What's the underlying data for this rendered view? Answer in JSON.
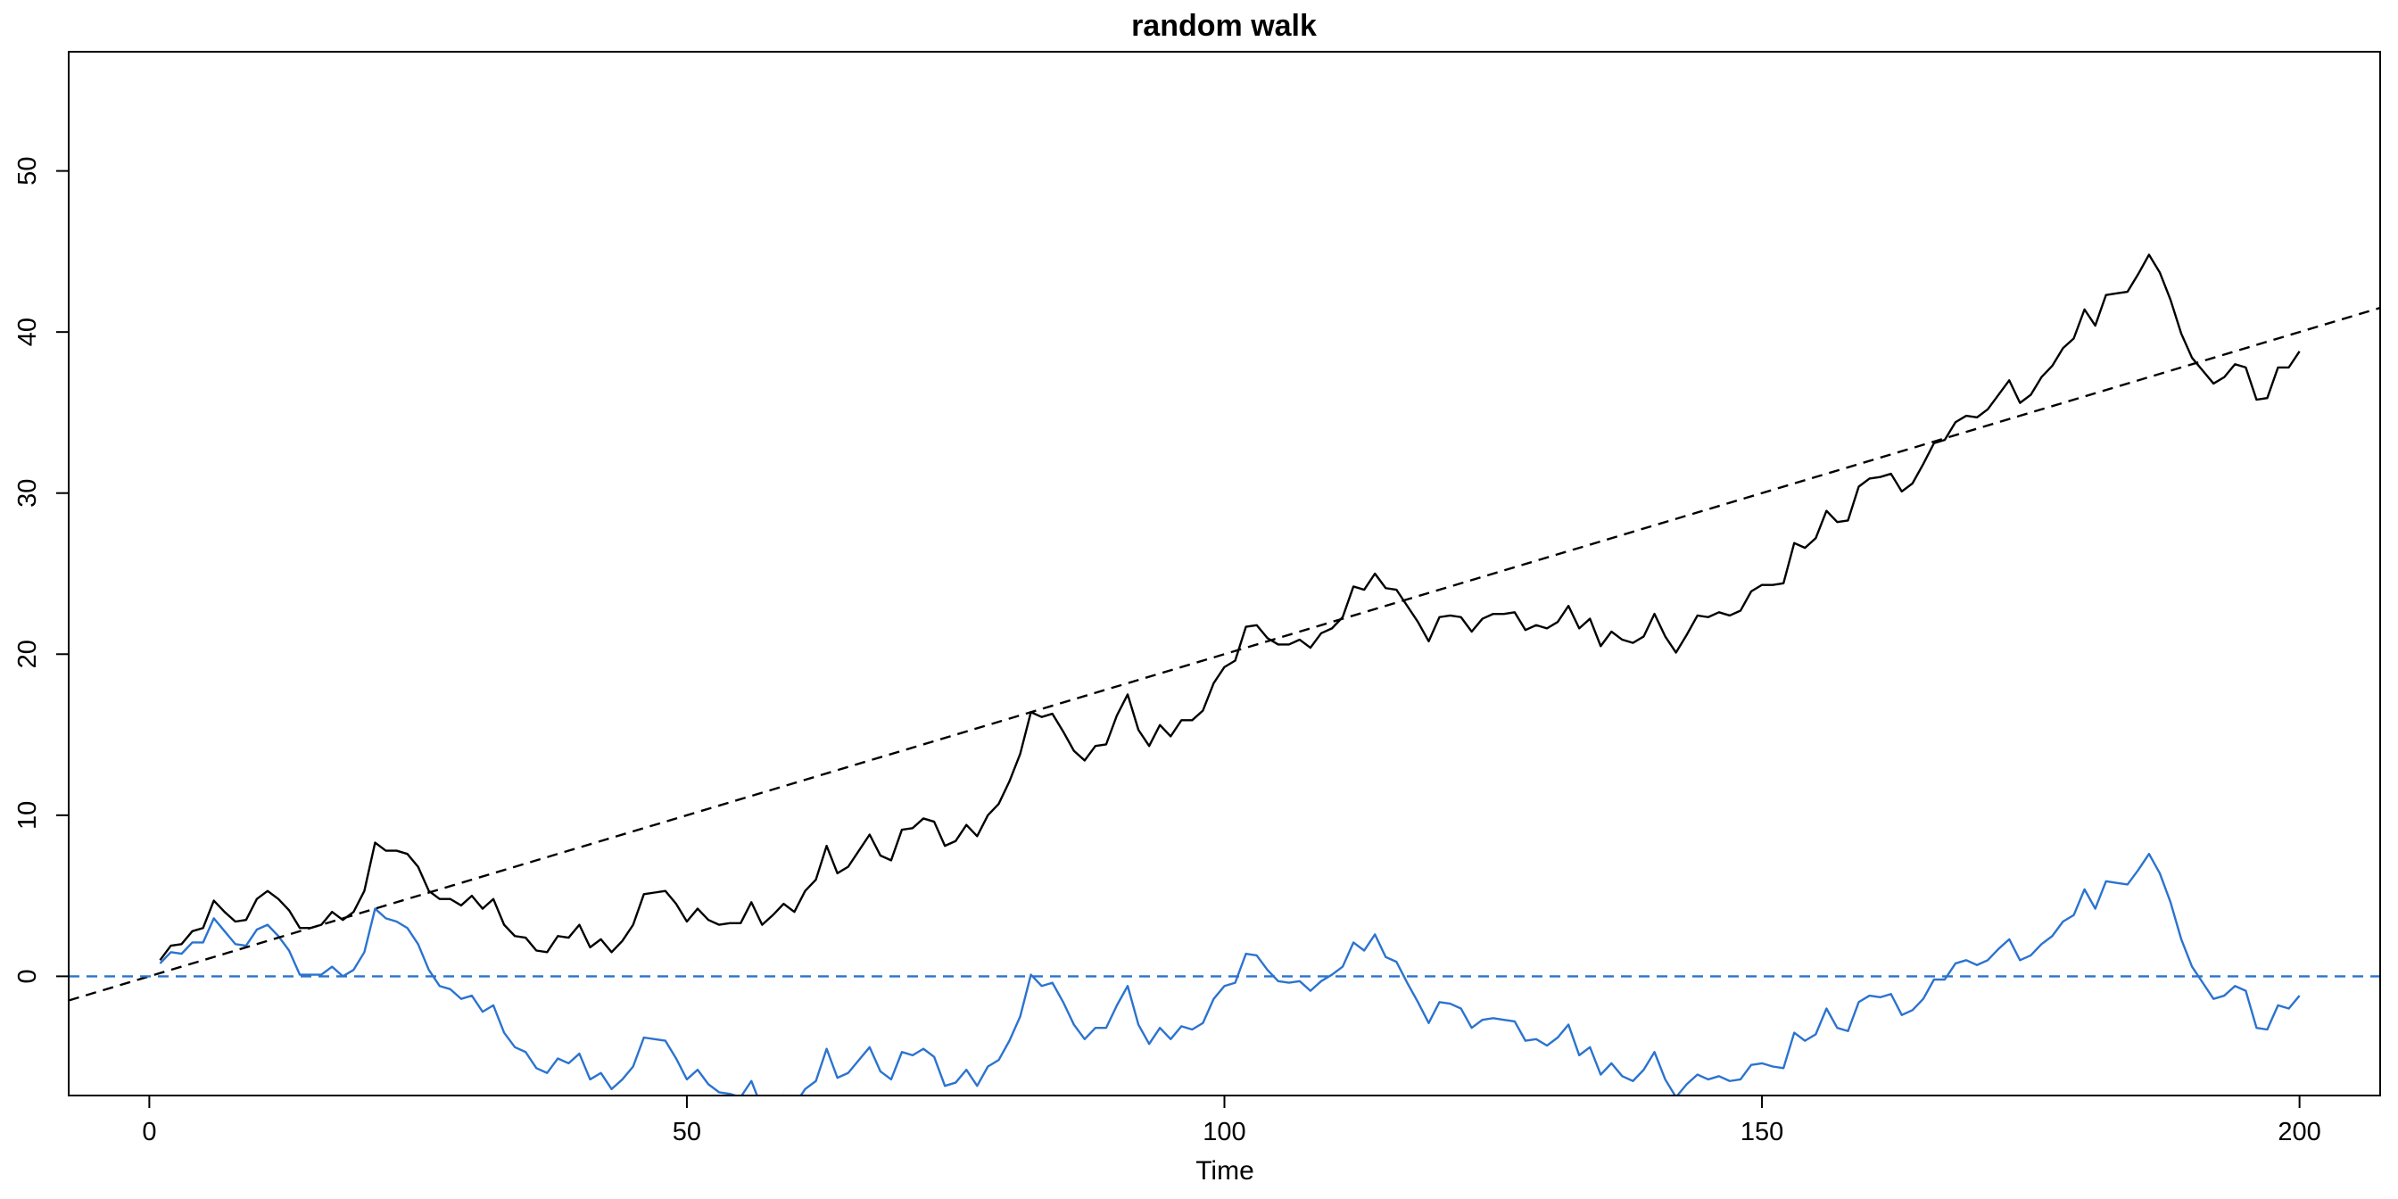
{
  "chart_data": {
    "type": "line",
    "title": "random walk",
    "xlabel": "Time",
    "ylabel": "",
    "xlim": [
      -7.5,
      207.5
    ],
    "ylim": [
      -7.4,
      57.4
    ],
    "xticks": [
      0,
      50,
      100,
      150,
      200
    ],
    "yticks": [
      0,
      10,
      20,
      30,
      40,
      50
    ],
    "grid": false,
    "legend": "none",
    "series": [
      {
        "color": "#000000",
        "style": "solid",
        "x_start": 1,
        "x_step": 1,
        "values": [
          1.0,
          1.9,
          2.0,
          2.8,
          3.0,
          4.7,
          4.0,
          3.4,
          3.5,
          4.8,
          5.3,
          4.8,
          4.1,
          3.0,
          3.0,
          3.2,
          4.0,
          3.5,
          4.0,
          5.3,
          8.3,
          7.8,
          7.8,
          7.6,
          6.8,
          5.3,
          4.8,
          4.8,
          4.4,
          5.0,
          4.2,
          4.8,
          3.2,
          2.5,
          2.4,
          1.6,
          1.5,
          2.5,
          2.4,
          3.2,
          1.8,
          2.3,
          1.5,
          2.2,
          3.2,
          5.1,
          5.2,
          5.3,
          4.5,
          3.4,
          4.2,
          3.5,
          3.2,
          3.3,
          3.3,
          4.6,
          3.2,
          3.8,
          4.5,
          4.0,
          5.3,
          6.0,
          8.1,
          6.4,
          6.8,
          7.8,
          8.8,
          7.5,
          7.2,
          9.1,
          9.2,
          9.8,
          9.6,
          8.1,
          8.4,
          9.4,
          8.7,
          10.0,
          10.7,
          12.1,
          13.8,
          16.4,
          16.1,
          16.3,
          15.2,
          14.0,
          13.4,
          14.3,
          14.4,
          16.2,
          17.5,
          15.3,
          14.3,
          15.6,
          14.9,
          15.9,
          15.9,
          16.5,
          18.2,
          19.2,
          19.6,
          21.7,
          21.8,
          21.0,
          20.6,
          20.6,
          20.9,
          20.4,
          21.3,
          21.6,
          22.3,
          24.2,
          24.0,
          25.0,
          24.1,
          24.0,
          23.0,
          22.0,
          20.8,
          22.3,
          22.4,
          22.3,
          21.4,
          22.2,
          22.5,
          22.5,
          22.6,
          21.5,
          21.8,
          21.6,
          22.0,
          23.0,
          21.6,
          22.2,
          20.5,
          21.4,
          20.9,
          20.7,
          21.1,
          22.5,
          21.1,
          20.1,
          21.2,
          22.4,
          22.3,
          22.6,
          22.4,
          22.7,
          23.9,
          24.3,
          24.3,
          24.4,
          26.9,
          26.6,
          27.2,
          28.9,
          28.2,
          28.3,
          30.4,
          30.9,
          31.0,
          31.2,
          30.1,
          30.6,
          31.8,
          33.1,
          33.3,
          34.4,
          34.8,
          34.7,
          35.2,
          36.1,
          37.0,
          35.6,
          36.1,
          37.2,
          37.9,
          39.0,
          39.6,
          41.4,
          40.4,
          42.3,
          42.4,
          42.5,
          43.6,
          44.8,
          43.7,
          42.0,
          39.9,
          38.4,
          37.6,
          36.8,
          37.2,
          38.0,
          37.8,
          35.8,
          35.9,
          37.8,
          37.8,
          38.8
        ]
      },
      {
        "color": "#2b73cf",
        "style": "solid",
        "x_start": 1,
        "x_step": 1,
        "values": [
          0.8,
          1.5,
          1.4,
          2.1,
          2.1,
          3.6,
          2.8,
          2.0,
          1.9,
          2.9,
          3.2,
          2.5,
          1.6,
          0.1,
          0.1,
          0.1,
          0.6,
          0.0,
          0.4,
          1.5,
          4.2,
          3.6,
          3.4,
          3.0,
          2.0,
          0.4,
          -0.6,
          -0.8,
          -1.4,
          -1.2,
          -2.2,
          -1.8,
          -3.5,
          -4.4,
          -4.7,
          -5.7,
          -6.0,
          -5.1,
          -5.4,
          -4.8,
          -6.4,
          -6.0,
          -7.0,
          -6.4,
          -5.6,
          -3.8,
          -3.9,
          -4.0,
          -5.1,
          -6.4,
          -5.8,
          -6.7,
          -7.2,
          -7.3,
          -7.5,
          -6.5,
          -8.2,
          -7.8,
          -7.4,
          -8.0,
          -7.0,
          -6.5,
          -4.5,
          -6.3,
          -6.0,
          -5.2,
          -4.4,
          -5.9,
          -6.4,
          -4.7,
          -4.9,
          -4.5,
          -5.0,
          -6.8,
          -6.6,
          -5.8,
          -6.8,
          -5.6,
          -5.2,
          -4.0,
          -2.5,
          0.1,
          -0.6,
          -0.4,
          -1.6,
          -3.0,
          -3.9,
          -3.2,
          -3.2,
          -1.8,
          -0.6,
          -3.0,
          -4.2,
          -3.2,
          -3.9,
          -3.1,
          -3.3,
          -2.9,
          -1.4,
          -0.6,
          -0.4,
          1.4,
          1.3,
          0.4,
          -0.3,
          -0.4,
          -0.3,
          -0.9,
          -0.3,
          0.1,
          0.6,
          2.1,
          1.6,
          2.6,
          1.2,
          0.9,
          -0.4,
          -1.6,
          -2.9,
          -1.6,
          -1.7,
          -2.0,
          -3.2,
          -2.7,
          -2.6,
          -2.7,
          -2.8,
          -4.0,
          -3.9,
          -4.3,
          -3.8,
          -3.0,
          -4.9,
          -4.4,
          -6.1,
          -5.4,
          -6.2,
          -6.5,
          -5.8,
          -4.7,
          -6.4,
          -7.5,
          -6.7,
          -6.1,
          -6.4,
          -6.2,
          -6.5,
          -6.4,
          -5.5,
          -5.4,
          -5.6,
          -5.7,
          -3.5,
          -4.0,
          -3.6,
          -2.0,
          -3.2,
          -3.4,
          -1.6,
          -1.2,
          -1.3,
          -1.1,
          -2.4,
          -2.1,
          -1.4,
          -0.2,
          -0.2,
          0.8,
          1.0,
          0.7,
          1.0,
          1.7,
          2.3,
          1.0,
          1.3,
          2.0,
          2.5,
          3.4,
          3.8,
          5.4,
          4.2,
          5.9,
          5.8,
          5.7,
          6.6,
          7.6,
          6.4,
          4.6,
          2.3,
          0.6,
          -0.4,
          -1.4,
          -1.2,
          -0.6,
          -0.9,
          -3.2,
          -3.3,
          -1.8,
          -2.0,
          -1.2
        ]
      },
      {
        "color": "#000000",
        "style": "dashed",
        "slope": 0.2,
        "intercept": 0
      },
      {
        "color": "#2b73cf",
        "style": "dashed",
        "slope": 0,
        "intercept": 0
      }
    ]
  }
}
